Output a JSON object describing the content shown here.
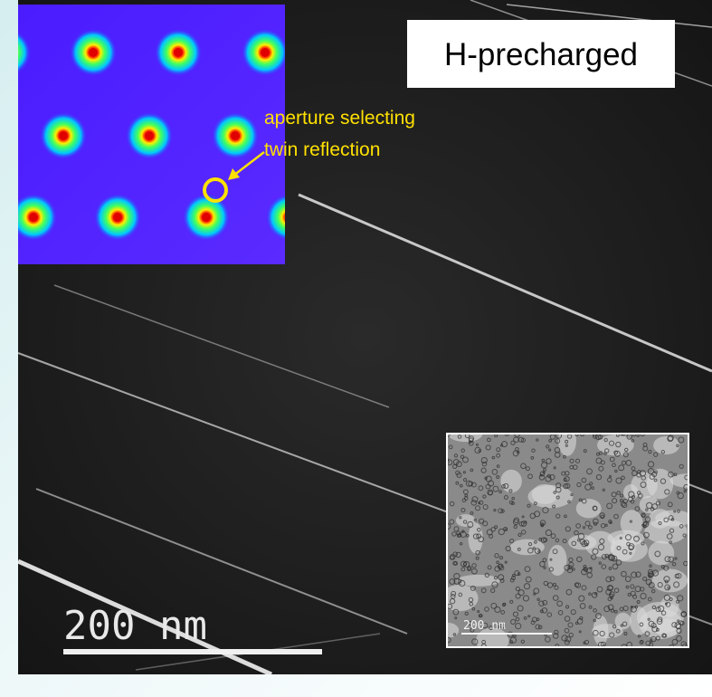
{
  "labels": {
    "condition": "H-precharged",
    "annotation": [
      "aperture selecting",
      "twin reflection"
    ],
    "scale_bar": "200 nm",
    "inset_scale_bar": "200 nm"
  }
}
